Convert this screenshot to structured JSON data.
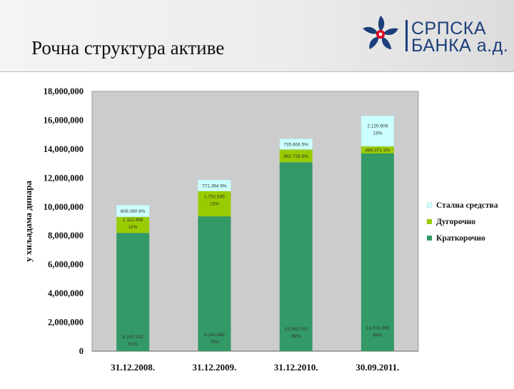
{
  "header": {
    "title": "Рочна структура активе",
    "logo": {
      "line1": "СРПСКА",
      "line2": "БАНКА а.д."
    }
  },
  "chart_data": {
    "type": "bar",
    "stacked": true,
    "ylabel": "у хиљадама динара",
    "ylim": [
      0,
      18000000
    ],
    "yticks": [
      "0",
      "2,000,000",
      "4,000,000",
      "6,000,000",
      "8,000,000",
      "10,000,000",
      "12,000,000",
      "14,000,000",
      "16,000,000",
      "18,000,000"
    ],
    "categories": [
      "31.12.2008.",
      "31.12.2009.",
      "31.12.2010.",
      "30.09.2011."
    ],
    "series": [
      {
        "name": "Краткорочно",
        "color": "#339966",
        "values": [
          8192032,
          9341882,
          13093793,
          13702396
        ],
        "labels": [
          [
            "8.192.032",
            "81%"
          ],
          [
            "9.341.882",
            "79%"
          ],
          [
            "13.093.793",
            "89%"
          ],
          [
            "13.702.396",
            "84%"
          ]
        ]
      },
      {
        "name": "Дугорочно",
        "color": "#99cc00",
        "values": [
          1112498,
          1752545,
          882728,
          489371
        ],
        "labels": [
          [
            "1.112.498",
            "11%"
          ],
          [
            "1.752.545",
            "15%"
          ],
          [
            "882.728 6%"
          ],
          [
            "489.371 3%"
          ]
        ]
      },
      {
        "name": "Стална средства",
        "color": "#ccffff",
        "values": [
          809090,
          771384,
          735606,
          2120609
        ],
        "labels": [
          [
            "809.090 8%"
          ],
          [
            "771.384 6%"
          ],
          [
            "735.606 5%"
          ],
          [
            "2.120.609",
            "13%"
          ]
        ]
      }
    ],
    "legend": {
      "position": "right",
      "order": [
        "Стална средства",
        "Дугорочно",
        "Краткорочно"
      ]
    },
    "grid": false,
    "plot_background": "#cccccc"
  }
}
